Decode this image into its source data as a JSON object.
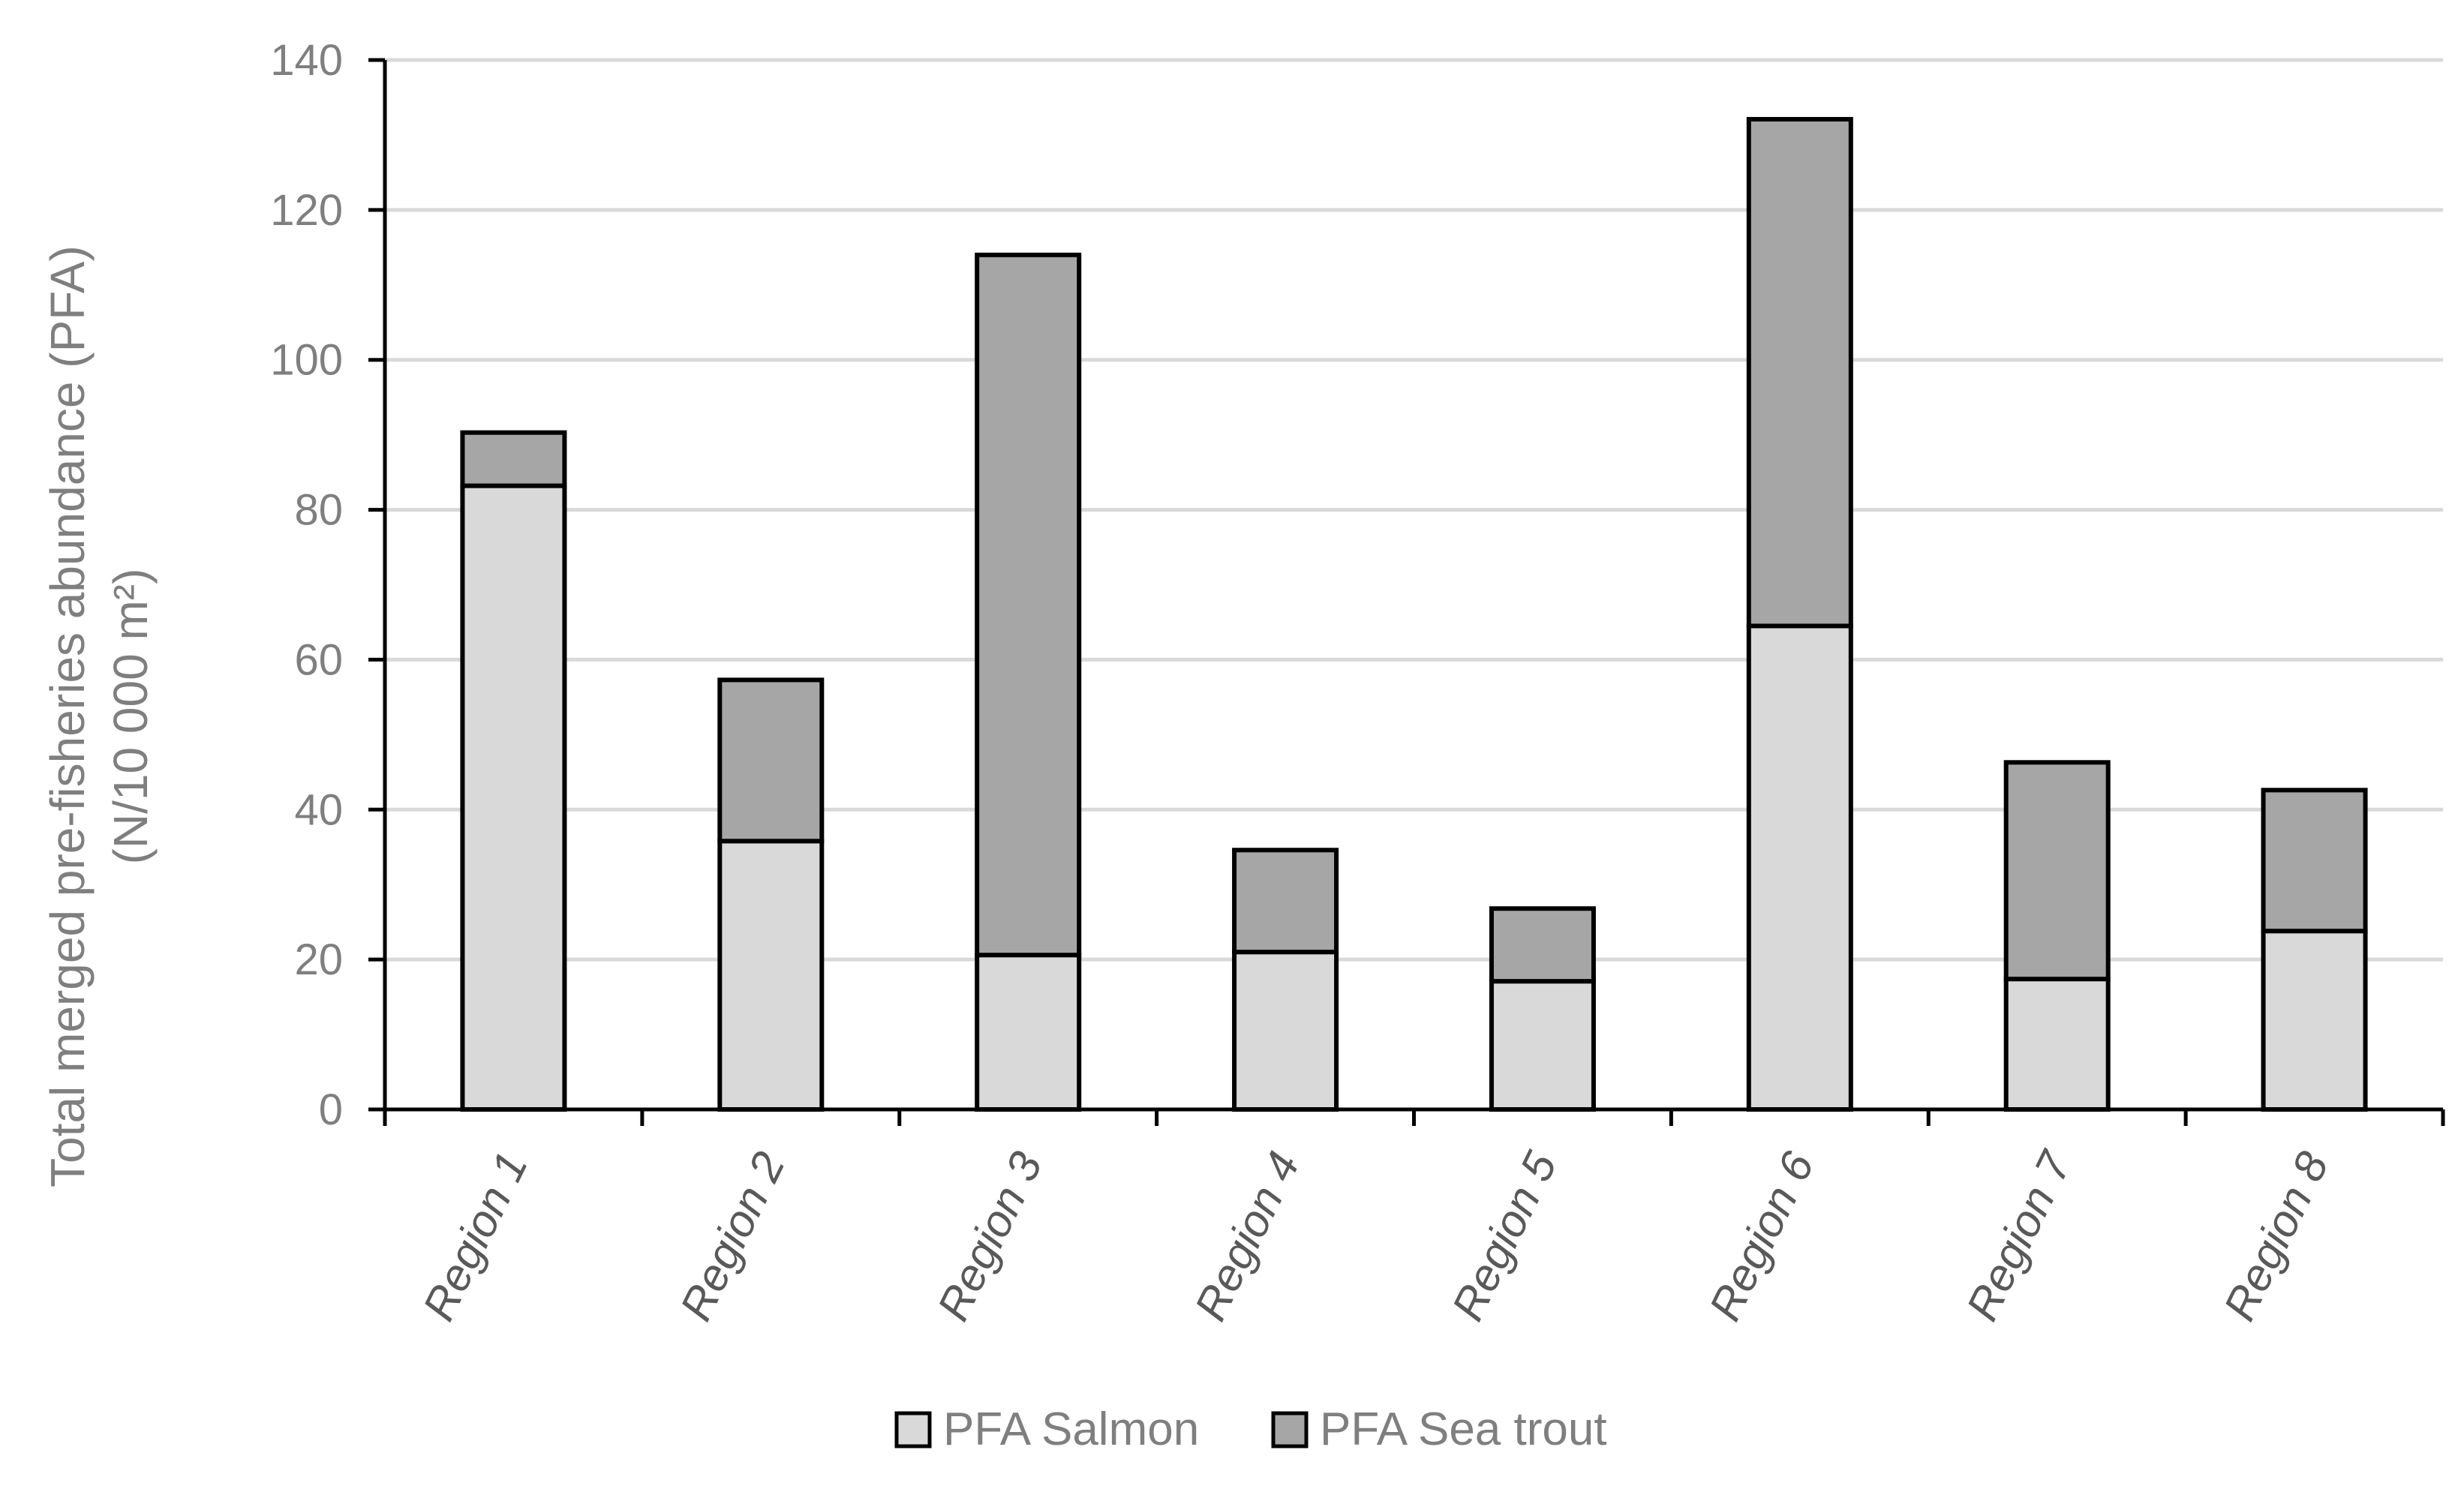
{
  "chart_data": {
    "type": "bar",
    "stacked": true,
    "categories": [
      "Region 1",
      "Region 2",
      "Region 3",
      "Region 4",
      "Region 5",
      "Region 6",
      "Region 7",
      "Region 8"
    ],
    "series": [
      {
        "name": "PFA Salmon",
        "color": "#d9d9d9",
        "values": [
          83.2,
          35.8,
          20.6,
          21.0,
          17.1,
          64.5,
          17.4,
          23.8
        ]
      },
      {
        "name": "PFA Sea trout",
        "color": "#a6a6a6",
        "values": [
          7.1,
          21.5,
          93.4,
          13.6,
          9.7,
          67.6,
          28.9,
          18.8
        ]
      }
    ],
    "ylabel_line1": "Total merged  pre-fisheries abundance (PFA)",
    "ylabel_line2": "(N/10 000 m²)",
    "ylim": [
      0,
      140
    ],
    "yticks": [
      0,
      20,
      40,
      60,
      80,
      100,
      120,
      140
    ],
    "grid": true,
    "legend_position": "bottom"
  }
}
